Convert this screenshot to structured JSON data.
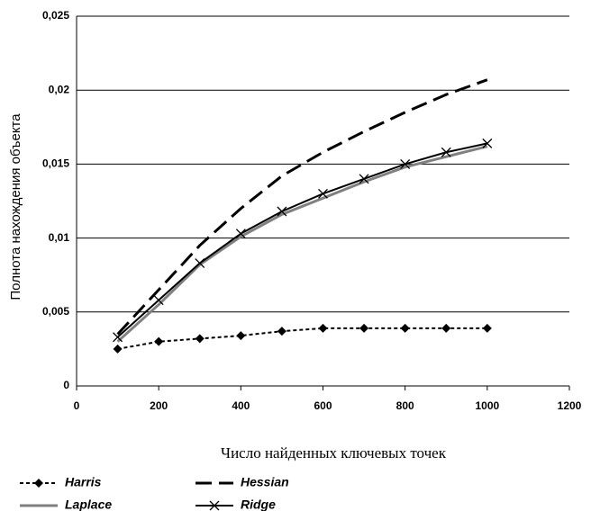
{
  "chart_data": {
    "type": "line",
    "x_label": "Число найденных ключевых точек",
    "y_label": "Полнота нахождения объекта",
    "x": [
      100,
      200,
      300,
      400,
      500,
      600,
      700,
      800,
      900,
      1000
    ],
    "series": [
      {
        "name": "Harris",
        "color": "#000000",
        "dash": "dotted",
        "marker": "diamond",
        "width": 2,
        "values": [
          0.0025,
          0.003,
          0.0032,
          0.0034,
          0.0037,
          0.0039,
          0.0039,
          0.0039,
          0.0039,
          0.0039
        ]
      },
      {
        "name": "Hessian",
        "color": "#000000",
        "dash": "dashed",
        "marker": "none",
        "width": 3,
        "values": [
          0.0035,
          0.0065,
          0.0095,
          0.012,
          0.0142,
          0.0158,
          0.0172,
          0.0185,
          0.0197,
          0.0207
        ]
      },
      {
        "name": "Laplace",
        "color": "#808080",
        "dash": "solid",
        "marker": "none",
        "width": 3,
        "values": [
          0.003,
          0.0055,
          0.0082,
          0.0101,
          0.0116,
          0.0127,
          0.0138,
          0.0148,
          0.0155,
          0.0162
        ]
      },
      {
        "name": "Ridge",
        "color": "#000000",
        "dash": "solid",
        "marker": "x",
        "width": 2,
        "values": [
          0.0033,
          0.0058,
          0.0083,
          0.0103,
          0.0118,
          0.013,
          0.014,
          0.015,
          0.0158,
          0.0164
        ]
      }
    ],
    "xlim": [
      0,
      1200
    ],
    "xticks": [
      0,
      200,
      400,
      600,
      800,
      1000,
      1200
    ],
    "ylim": [
      0,
      0.025
    ],
    "yticks": [
      0,
      {
        "value": 0.005,
        "label": "0,005"
      },
      {
        "value": 0.01,
        "label": "0,01"
      },
      {
        "value": 0.015,
        "label": "0,015"
      },
      {
        "value": 0.02,
        "label": "0,02"
      },
      {
        "value": 0.025,
        "label": "0,025"
      }
    ],
    "grid": true,
    "legend": "bottom"
  }
}
